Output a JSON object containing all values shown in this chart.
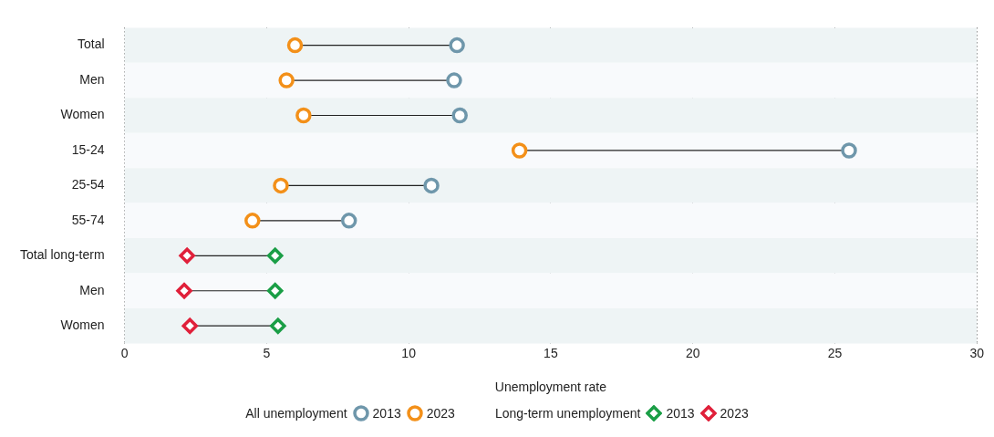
{
  "chart_data": {
    "type": "scatter",
    "orientation": "horizontal",
    "xlabel": "Unemployment rate",
    "categories": [
      "Total",
      "Men",
      "Women",
      "15-24",
      "25-54",
      "55-74",
      "Total long-term",
      "Men",
      "Women"
    ],
    "series": [
      {
        "name": "2013",
        "color": "#6f97ab",
        "marker": "circle",
        "values": [
          11.7,
          11.6,
          11.8,
          25.5,
          10.8,
          7.9,
          null,
          null,
          null
        ]
      },
      {
        "name": "2023",
        "color": "#f39019",
        "marker": "circle",
        "values": [
          6.0,
          5.7,
          6.3,
          13.9,
          5.5,
          4.5,
          null,
          null,
          null
        ]
      },
      {
        "name": "2013",
        "color": "#1a9e46",
        "marker": "diamond",
        "values": [
          null,
          null,
          null,
          null,
          null,
          null,
          5.3,
          5.3,
          5.4
        ]
      },
      {
        "name": "2023",
        "color": "#e0203a",
        "marker": "diamond",
        "values": [
          null,
          null,
          null,
          null,
          null,
          null,
          2.2,
          2.1,
          2.3
        ]
      }
    ],
    "annotations": [
      "All unemployment",
      "Long-term unemployment"
    ],
    "xlim": [
      0,
      30
    ],
    "xticks": [
      0,
      5,
      10,
      15,
      20,
      25,
      30
    ],
    "grid": "x",
    "legend": "bottom"
  }
}
